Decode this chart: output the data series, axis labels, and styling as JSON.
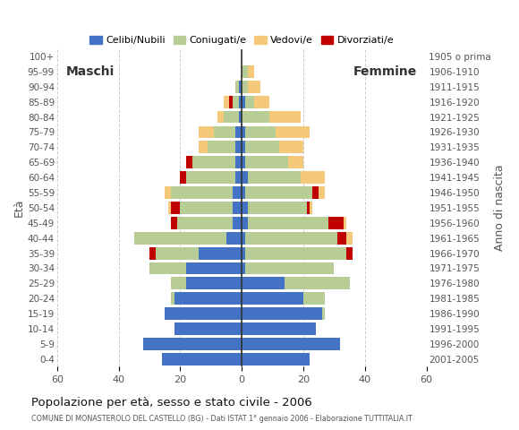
{
  "age_groups": [
    "0-4",
    "5-9",
    "10-14",
    "15-19",
    "20-24",
    "25-29",
    "30-34",
    "35-39",
    "40-44",
    "45-49",
    "50-54",
    "55-59",
    "60-64",
    "65-69",
    "70-74",
    "75-79",
    "80-84",
    "85-89",
    "90-94",
    "95-99",
    "100+"
  ],
  "birth_years": [
    "2001-2005",
    "1996-2000",
    "1991-1995",
    "1986-1990",
    "1981-1985",
    "1976-1980",
    "1971-1975",
    "1966-1970",
    "1961-1965",
    "1956-1960",
    "1951-1955",
    "1946-1950",
    "1941-1945",
    "1936-1940",
    "1931-1935",
    "1926-1930",
    "1921-1925",
    "1916-1920",
    "1911-1915",
    "1906-1910",
    "1905 o prima"
  ],
  "colors": {
    "celibe": "#4472C4",
    "coniugato": "#B8CC96",
    "vedovo": "#F5C97A",
    "divorziato": "#C00000"
  },
  "males": {
    "celibe": [
      26,
      32,
      22,
      25,
      22,
      18,
      18,
      14,
      5,
      3,
      3,
      3,
      2,
      2,
      2,
      2,
      1,
      1,
      1,
      0,
      0
    ],
    "coniugato": [
      0,
      0,
      0,
      0,
      1,
      5,
      12,
      14,
      30,
      18,
      17,
      20,
      16,
      14,
      9,
      7,
      5,
      2,
      1,
      0,
      0
    ],
    "vedovo": [
      0,
      0,
      0,
      0,
      0,
      0,
      0,
      0,
      0,
      0,
      1,
      2,
      0,
      0,
      3,
      5,
      2,
      2,
      0,
      0,
      0
    ],
    "divorziato": [
      0,
      0,
      0,
      0,
      0,
      0,
      0,
      2,
      0,
      2,
      3,
      0,
      2,
      2,
      0,
      0,
      0,
      1,
      0,
      0,
      0
    ]
  },
  "females": {
    "celibe": [
      22,
      32,
      24,
      26,
      20,
      14,
      1,
      1,
      1,
      2,
      2,
      1,
      2,
      1,
      1,
      1,
      0,
      1,
      0,
      0,
      0
    ],
    "coniugato": [
      0,
      0,
      0,
      1,
      7,
      21,
      29,
      33,
      30,
      26,
      19,
      22,
      17,
      14,
      11,
      10,
      9,
      3,
      2,
      2,
      0
    ],
    "vedovo": [
      0,
      0,
      0,
      0,
      0,
      0,
      0,
      0,
      2,
      1,
      1,
      2,
      8,
      5,
      8,
      11,
      10,
      5,
      4,
      2,
      0
    ],
    "divorziato": [
      0,
      0,
      0,
      0,
      0,
      0,
      0,
      2,
      3,
      5,
      1,
      2,
      0,
      0,
      0,
      0,
      0,
      0,
      0,
      0,
      0
    ]
  },
  "title": "Popolazione per età, sesso e stato civile - 2006",
  "subtitle": "COMUNE DI MONASTEROLO DEL CASTELLO (BG) - Dati ISTAT 1° gennaio 2006 - Elaborazione TUTTITALIA.IT",
  "xlim": 60,
  "xticks": [
    -60,
    -40,
    -20,
    0,
    20,
    40,
    60
  ],
  "xtick_labels": [
    "60",
    "40",
    "20",
    "0",
    "20",
    "40",
    "60"
  ],
  "legend_labels": [
    "Celibi/Nubili",
    "Coniugati/e",
    "Vedovi/e",
    "Divorziati/e"
  ],
  "ylabel": "Età",
  "ylabel_right": "Anno di nascita",
  "background_color": "#ffffff",
  "bar_height": 0.82
}
